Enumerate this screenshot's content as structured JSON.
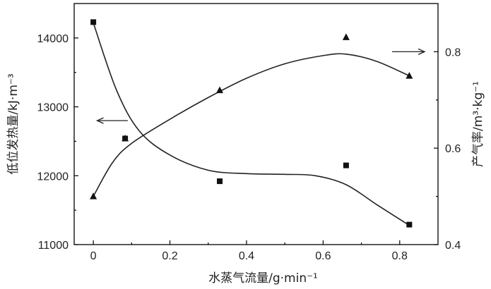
{
  "chart_data": {
    "type": "scatter",
    "xlabel": "水蒸气流量/g·min⁻¹",
    "ylabel_left": "低位发热量/kJ·m⁻³",
    "ylabel_right": "产气率/m³·kg⁻¹",
    "xlim": [
      -0.05,
      0.9
    ],
    "ylim_left": [
      11000,
      14500
    ],
    "ylim_right": [
      0.4,
      0.9
    ],
    "x_ticks": [
      "0",
      "0.2",
      "0.4",
      "0.6",
      "0.8"
    ],
    "y_left_ticks": [
      "11000",
      "12000",
      "13000",
      "14000"
    ],
    "y_right_ticks": [
      "0.4",
      "0.6",
      "0.8"
    ],
    "series": [
      {
        "axis": "left",
        "marker": "square",
        "x": [
          0,
          0.083,
          0.33,
          0.66,
          0.825
        ],
        "y": [
          14230,
          12540,
          11920,
          12150,
          11290
        ],
        "fit_curve": [
          [
            0,
            14220
          ],
          [
            0.06,
            13250
          ],
          [
            0.12,
            12650
          ],
          [
            0.2,
            12300
          ],
          [
            0.3,
            12080
          ],
          [
            0.4,
            12030
          ],
          [
            0.5,
            12020
          ],
          [
            0.58,
            12000
          ],
          [
            0.66,
            11870
          ],
          [
            0.74,
            11580
          ],
          [
            0.825,
            11280
          ]
        ]
      },
      {
        "axis": "right",
        "marker": "triangle",
        "x": [
          0,
          0.083,
          0.33,
          0.66,
          0.825
        ],
        "y": [
          0.5,
          0.62,
          0.72,
          0.83,
          0.75
        ],
        "fit_curve": [
          [
            0,
            0.5
          ],
          [
            0.05,
            0.57
          ],
          [
            0.1,
            0.61
          ],
          [
            0.2,
            0.66
          ],
          [
            0.3,
            0.705
          ],
          [
            0.4,
            0.745
          ],
          [
            0.5,
            0.775
          ],
          [
            0.6,
            0.792
          ],
          [
            0.66,
            0.795
          ],
          [
            0.74,
            0.78
          ],
          [
            0.825,
            0.75
          ]
        ]
      }
    ],
    "annotations": [
      {
        "type": "arrow",
        "direction": "left",
        "axis": "left",
        "x_from": 0.09,
        "x_to": 0.01,
        "y": 12800
      },
      {
        "type": "arrow",
        "direction": "right",
        "axis": "right",
        "x_from": 0.78,
        "x_to": 0.865,
        "y": 0.8
      }
    ]
  }
}
